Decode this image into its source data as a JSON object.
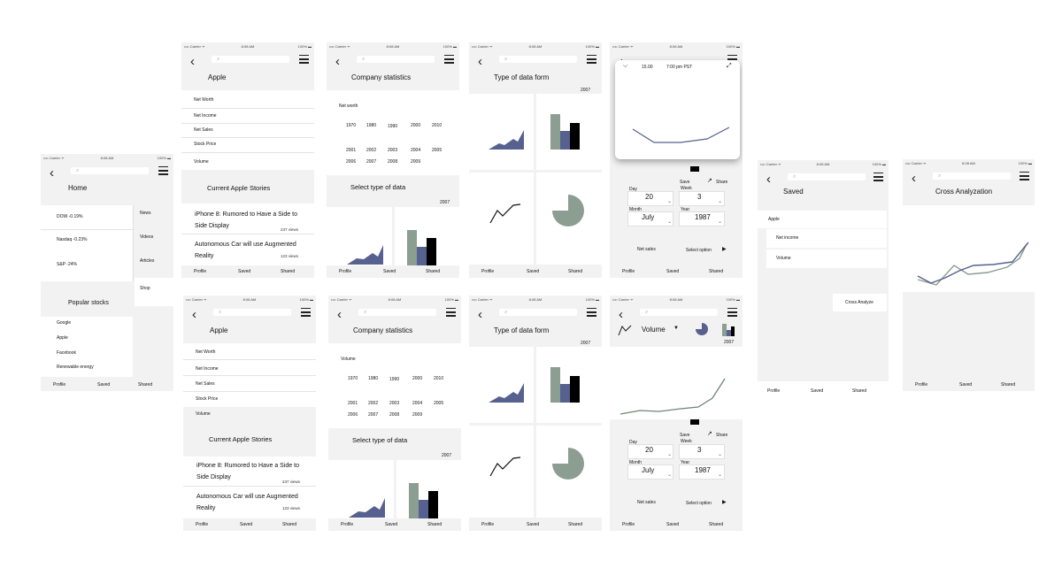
{
  "status": {
    "carrier": "•••• Carrier ᯤ",
    "time": "8:08 AM",
    "battery": "100% ▬"
  },
  "tabs": {
    "profile": "Profile",
    "saved": "Saved",
    "shared": "Shared"
  },
  "home": {
    "title": "Home",
    "indices": [
      "DOW -0.19%",
      "Nasdaq -0.23%",
      "S&P -24%"
    ],
    "side": [
      "News",
      "Videos",
      "Articles",
      "Shop"
    ],
    "popular_title": "Popular stocks",
    "stocks": [
      "Google",
      "Apple",
      "Facebook",
      "Renewable energy"
    ]
  },
  "apple": {
    "title": "Apple",
    "items": [
      "Net Worth",
      "Net Income",
      "Net Sales",
      "Stock Price",
      "Volume"
    ],
    "stories_title": "Current Apple Stories",
    "story1": "iPhone 8: Rumored to Have a Side to Side Display",
    "story1_views": "237 views",
    "story2": "Autonomous Car will use Augmented Reality",
    "story2_views": "123 views"
  },
  "company": {
    "title": "Company statistics",
    "label_top": "Net worth",
    "label_bottom": "Volume",
    "years_row1": [
      "1970",
      "1980",
      "1990",
      "2000",
      "2010"
    ],
    "years_row2": [
      "2001",
      "2002",
      "2003",
      "2004",
      "2005"
    ],
    "years_row3": [
      "2006",
      "2007",
      "2008",
      "2009"
    ],
    "select_title": "Select type of data",
    "select_year": "2007"
  },
  "dataform": {
    "title": "Type of data form",
    "year": "2007"
  },
  "detail": {
    "popup_time": "15.00",
    "popup_tz": "7:00 pm PST",
    "save": "Save",
    "share": "Share",
    "day_label": "Day",
    "day": "20",
    "week_label": "Week",
    "week": "3",
    "month_label": "Month",
    "month": "July",
    "year_label": "Year",
    "year": "1987",
    "net_sales": "Net sales",
    "select_option": "Select option",
    "volume": "Volume",
    "chart_year": "2007"
  },
  "saved": {
    "title": "Saved",
    "items": [
      "Apple",
      "Net income",
      "Volume"
    ],
    "cross_button": "Cross Analyze"
  },
  "cross": {
    "title": "Cross Analyzation"
  },
  "colors": {
    "navy": "#56618f",
    "sage": "#8c9d92",
    "black": "#000000",
    "bg": "#f2f2f3"
  },
  "icons": [
    "back-chevron-icon",
    "search-icon",
    "menu-icon",
    "share-icon",
    "expand-icon",
    "chevron-down-icon",
    "play-arrow-icon"
  ]
}
